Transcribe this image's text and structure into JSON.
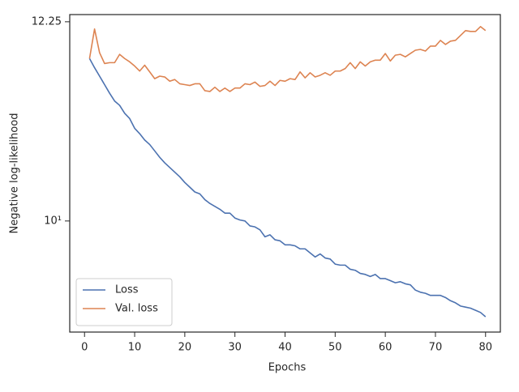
{
  "chart_data": {
    "type": "line",
    "x_label": "Epochs",
    "y_label": "Negative log-likelihood",
    "y_scale": "log",
    "legend": "lower left",
    "xlim": [
      -2.95,
      82.95
    ],
    "ylim": [
      8.93,
      12.34
    ],
    "xticks": [
      0,
      10,
      20,
      30,
      40,
      50,
      60,
      70,
      80
    ],
    "yticks": [
      {
        "value": 10,
        "label": "10¹"
      },
      12.25
    ],
    "x": [
      1,
      2,
      3,
      4,
      5,
      6,
      7,
      8,
      9,
      10,
      11,
      12,
      13,
      14,
      15,
      16,
      17,
      18,
      19,
      20,
      21,
      22,
      23,
      24,
      25,
      26,
      27,
      28,
      29,
      30,
      31,
      32,
      33,
      34,
      35,
      36,
      37,
      38,
      39,
      40,
      41,
      42,
      43,
      44,
      45,
      46,
      47,
      48,
      49,
      50,
      51,
      52,
      53,
      54,
      55,
      56,
      57,
      58,
      59,
      60,
      61,
      62,
      63,
      64,
      65,
      66,
      67,
      68,
      69,
      70,
      71,
      72,
      73,
      74,
      75,
      76,
      77,
      78,
      79,
      80
    ],
    "series": [
      {
        "name": "Loss",
        "color": "#4c72b0",
        "values": [
          11.8,
          11.69,
          11.59,
          11.49,
          11.39,
          11.3,
          11.25,
          11.16,
          11.1,
          10.99,
          10.93,
          10.86,
          10.81,
          10.74,
          10.67,
          10.61,
          10.56,
          10.51,
          10.46,
          10.4,
          10.35,
          10.3,
          10.28,
          10.22,
          10.18,
          10.15,
          10.12,
          10.08,
          10.08,
          10.03,
          10.01,
          10.0,
          9.95,
          9.94,
          9.91,
          9.84,
          9.86,
          9.81,
          9.8,
          9.76,
          9.76,
          9.75,
          9.72,
          9.72,
          9.68,
          9.64,
          9.67,
          9.63,
          9.62,
          9.57,
          9.56,
          9.56,
          9.52,
          9.51,
          9.48,
          9.47,
          9.45,
          9.47,
          9.43,
          9.43,
          9.41,
          9.39,
          9.4,
          9.38,
          9.37,
          9.32,
          9.3,
          9.29,
          9.27,
          9.27,
          9.27,
          9.25,
          9.22,
          9.2,
          9.17,
          9.16,
          9.15,
          9.13,
          9.11,
          9.07
        ]
      },
      {
        "name": "Val. loss",
        "color": "#dd8452",
        "values": [
          11.8,
          12.16,
          11.87,
          11.74,
          11.75,
          11.75,
          11.85,
          11.8,
          11.76,
          11.71,
          11.65,
          11.72,
          11.64,
          11.56,
          11.59,
          11.58,
          11.53,
          11.55,
          11.5,
          11.49,
          11.48,
          11.5,
          11.5,
          11.42,
          11.41,
          11.46,
          11.41,
          11.45,
          11.41,
          11.45,
          11.45,
          11.5,
          11.49,
          11.52,
          11.47,
          11.48,
          11.53,
          11.48,
          11.54,
          11.53,
          11.56,
          11.55,
          11.64,
          11.57,
          11.63,
          11.58,
          11.6,
          11.63,
          11.6,
          11.65,
          11.65,
          11.68,
          11.75,
          11.68,
          11.76,
          11.71,
          11.76,
          11.78,
          11.78,
          11.86,
          11.77,
          11.84,
          11.85,
          11.82,
          11.86,
          11.9,
          11.91,
          11.89,
          11.95,
          11.95,
          12.02,
          11.97,
          12.01,
          12.02,
          12.08,
          12.14,
          12.13,
          12.13,
          12.19,
          12.14
        ]
      }
    ]
  }
}
